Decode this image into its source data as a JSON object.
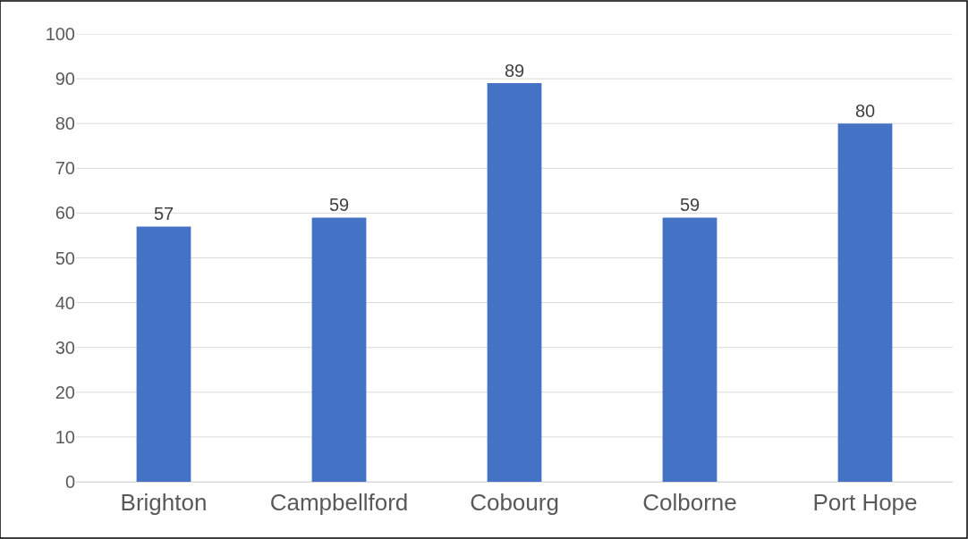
{
  "chart_data": {
    "type": "bar",
    "categories": [
      "Brighton",
      "Campbellford",
      "Cobourg",
      "Colborne",
      "Port Hope"
    ],
    "values": [
      57,
      59,
      89,
      59,
      80
    ],
    "color": "#4472c4",
    "ylim": [
      0,
      100
    ],
    "yticks": [
      0,
      10,
      20,
      30,
      40,
      50,
      60,
      70,
      80,
      90,
      100
    ],
    "grid": "y",
    "data_labels": true
  }
}
